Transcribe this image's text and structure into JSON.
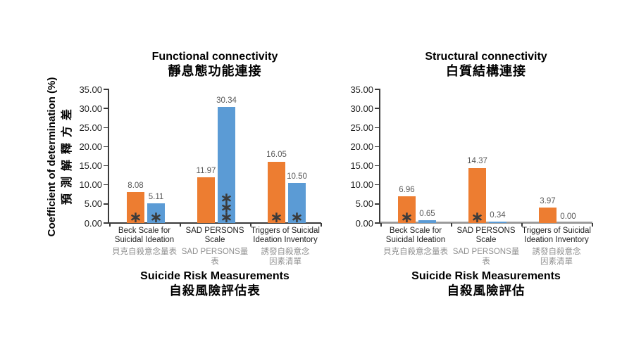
{
  "figure": {
    "y_axis_label": {
      "en": "Coefficient of determination (%)",
      "zh": "預測解釋方差"
    }
  },
  "colors": {
    "orange_series": "#ED7D31",
    "blue_series": "#5B9BD5",
    "value_label_gray": "#595959",
    "category_zh_gray": "#8F8F8F",
    "significance_gray": "#3B3B3B"
  },
  "chart_data": [
    {
      "type": "bar",
      "title": "Functional connectivity",
      "title_zh": "靜息態功能連接",
      "xlabel": "Suicide Risk Measurements",
      "xlabel_zh": "自殺風險評估表",
      "ylabel": "Coefficient of determination (%)",
      "ylabel_zh": "預測解釋方差",
      "ylim": [
        0,
        35
      ],
      "yticks": [
        "0.00",
        "5.00",
        "10.00",
        "15.00",
        "20.00",
        "25.00",
        "30.00",
        "35.00"
      ],
      "grid": false,
      "legend": false,
      "categories": [
        {
          "slug": "beck-scale",
          "label_lines": [
            "Beck Scale for",
            "Suicidal Ideation"
          ],
          "label_zh_lines": [
            "貝克自殺意念量表"
          ]
        },
        {
          "slug": "sad-persons",
          "label_lines": [
            "SAD PERSONS",
            "Scale"
          ],
          "label_zh_lines": [
            "SAD PERSONS量表"
          ]
        },
        {
          "slug": "triggers",
          "label_lines": [
            "Triggers of Suicidal",
            "Ideation Inventory"
          ],
          "label_zh_lines": [
            "誘發自殺意念",
            "因素清單"
          ]
        }
      ],
      "series": [
        {
          "key": "orange",
          "color": "#ED7D31",
          "values": [
            8.08,
            11.97,
            16.05
          ],
          "significance": [
            "*",
            "",
            "*"
          ]
        },
        {
          "key": "blue",
          "color": "#5B9BD5",
          "values": [
            5.11,
            30.34,
            10.5
          ],
          "significance": [
            "*",
            "***",
            "*"
          ]
        }
      ]
    },
    {
      "type": "bar",
      "title": "Structural connectivity",
      "title_zh": "白質結構連接",
      "xlabel": "Suicide Risk Measurements",
      "xlabel_zh": "自殺風險評估",
      "ylabel": "Coefficient of determination (%)",
      "ylabel_zh": "預測解釋方差",
      "ylim": [
        0,
        35
      ],
      "yticks": [
        "0.00",
        "5.00",
        "10.00",
        "15.00",
        "20.00",
        "25.00",
        "30.00",
        "35.00"
      ],
      "grid": false,
      "legend": false,
      "categories": [
        {
          "slug": "beck-scale",
          "label_lines": [
            "Beck Scale for",
            "Suicidal Ideation"
          ],
          "label_zh_lines": [
            "貝克自殺意念量表"
          ]
        },
        {
          "slug": "sad-persons",
          "label_lines": [
            "SAD PERSONS",
            "Scale"
          ],
          "label_zh_lines": [
            "SAD PERSONS量表"
          ]
        },
        {
          "slug": "triggers",
          "label_lines": [
            "Triggers of Suicidal",
            "Ideation Inventory"
          ],
          "label_zh_lines": [
            "誘發自殺意念",
            "因素清單"
          ]
        }
      ],
      "series": [
        {
          "key": "orange",
          "color": "#ED7D31",
          "values": [
            6.96,
            14.37,
            3.97
          ],
          "significance": [
            "*",
            "*",
            ""
          ]
        },
        {
          "key": "blue",
          "color": "#5B9BD5",
          "values": [
            0.65,
            0.34,
            0.0
          ],
          "significance": [
            "",
            "",
            ""
          ]
        }
      ]
    }
  ]
}
